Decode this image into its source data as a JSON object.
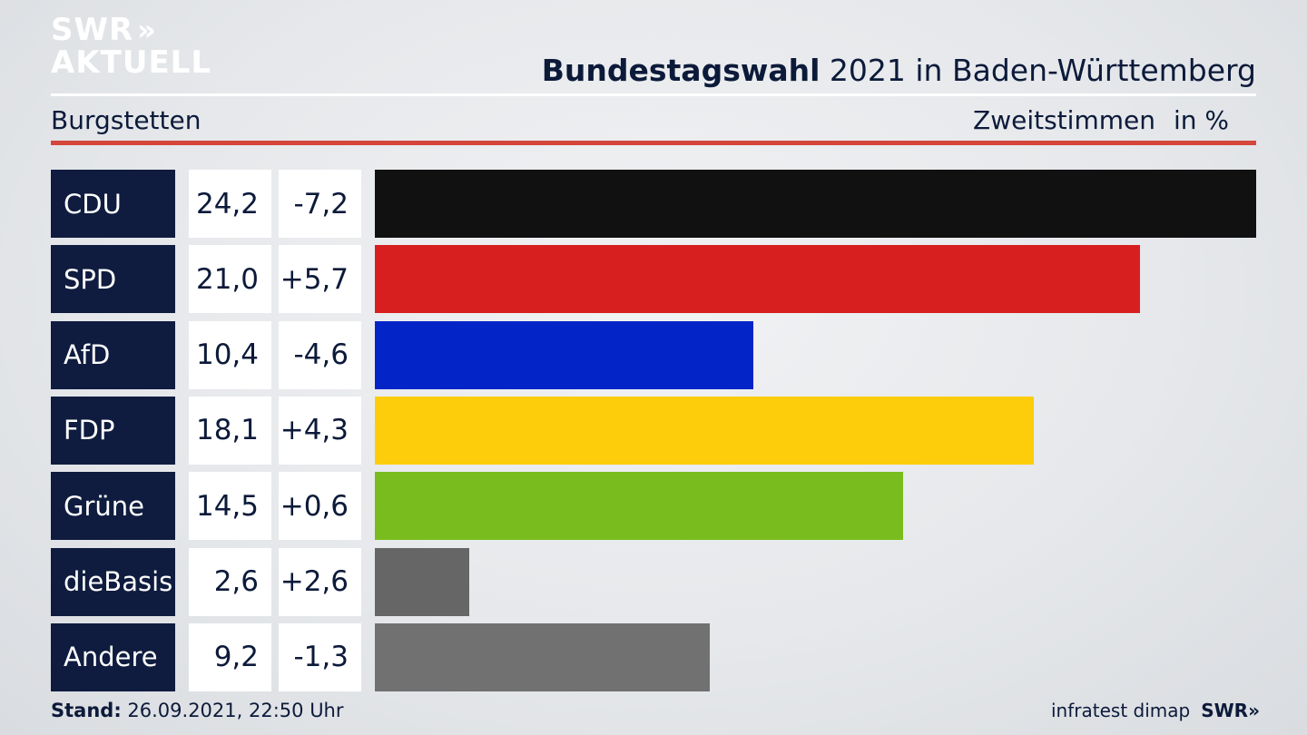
{
  "logo": {
    "line1": "SWR",
    "chevrons": "»",
    "line2": "AKTUELL"
  },
  "header": {
    "title_bold": "Bundestagswahl",
    "title_rest": "2021 in Baden-Württemberg",
    "location": "Burgstetten",
    "measure": "Zweitstimmen",
    "unit": "in %"
  },
  "chart_data": {
    "type": "bar",
    "orientation": "horizontal",
    "categories": [
      "CDU",
      "SPD",
      "AfD",
      "FDP",
      "Grüne",
      "dieBasis",
      "Andere"
    ],
    "values": [
      24.2,
      21.0,
      10.4,
      18.1,
      14.5,
      2.6,
      9.2
    ],
    "value_labels": [
      "24,2",
      "21,0",
      "10,4",
      "18,1",
      "14,5",
      "2,6",
      "9,2"
    ],
    "diff_labels": [
      "-7,2",
      "+5,7",
      "-4,6",
      "+4,3",
      "+0,6",
      "+2,6",
      "-1,3"
    ],
    "colors": [
      "#111111",
      "#d81f1f",
      "#0324c7",
      "#fdcd0b",
      "#78bd1d",
      "#666666",
      "#717172"
    ],
    "xlim": [
      0,
      24.2
    ]
  },
  "footer": {
    "stand_label": "Stand:",
    "stand_value": "26.09.2021, 22:50 Uhr",
    "source": "infratest dimap",
    "brand": "SWR",
    "brand_chevrons": "»"
  }
}
